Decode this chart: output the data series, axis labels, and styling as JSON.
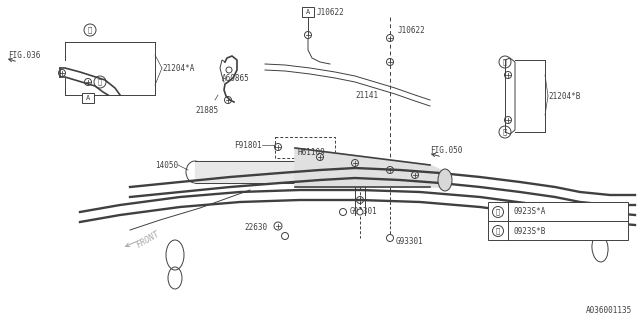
{
  "bg_color": "#ffffff",
  "line_color": "#404040",
  "labels": {
    "fig036": "FIG.036",
    "fig050": "FIG.050",
    "j10622_1": "J10622",
    "j10622_2": "J10622",
    "a60865": "A60865",
    "f91801": "F91801",
    "h61109": "H61109",
    "21885": "21885",
    "21141": "21141",
    "14050": "14050",
    "22630": "22630",
    "g93301_1": "G93301",
    "g93301_2": "G93301",
    "21204A": "21204*A",
    "21204B": "21204*B",
    "front": "FRONT",
    "legend1": "0923S*A",
    "legend2": "0923S*B",
    "doc_num": "A036001135"
  },
  "font_size": 5.5
}
